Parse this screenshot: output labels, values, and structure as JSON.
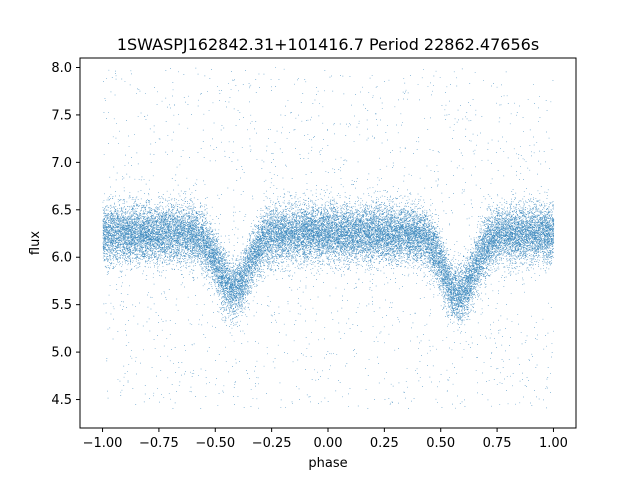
{
  "chart_data": {
    "type": "scatter",
    "title": "1SWASPJ162842.31+101416.7 Period 22862.47656s",
    "xlabel": "phase",
    "ylabel": "flux",
    "xlim": [
      -1.1,
      1.1
    ],
    "ylim": [
      4.2,
      8.1
    ],
    "xticks": [
      -1.0,
      -0.75,
      -0.5,
      -0.25,
      0.0,
      0.25,
      0.5,
      0.75,
      1.0
    ],
    "xtick_labels": [
      "−1.00",
      "−0.75",
      "−0.50",
      "−0.25",
      "0.00",
      "0.25",
      "0.50",
      "0.75",
      "1.00"
    ],
    "yticks": [
      4.5,
      5.0,
      5.5,
      6.0,
      6.5,
      7.0,
      7.5,
      8.0
    ],
    "ytick_labels": [
      "4.5",
      "5.0",
      "5.5",
      "6.0",
      "6.5",
      "7.0",
      "7.5",
      "8.0"
    ],
    "grid": false,
    "legend": false,
    "point_color": "#1f77b4",
    "series": [
      {
        "x_range": [
          -1.0,
          1.0
        ],
        "baseline_flux": 6.25,
        "scatter_sigma": 0.15,
        "eclipses": [
          {
            "phase_center": -0.42,
            "min_flux": 5.65,
            "half_width": 0.12
          },
          {
            "phase_center": 0.58,
            "min_flux": 5.6,
            "half_width": 0.12
          }
        ],
        "outlier_flux_range": [
          4.4,
          8.0
        ],
        "point_count": 30000
      }
    ]
  }
}
